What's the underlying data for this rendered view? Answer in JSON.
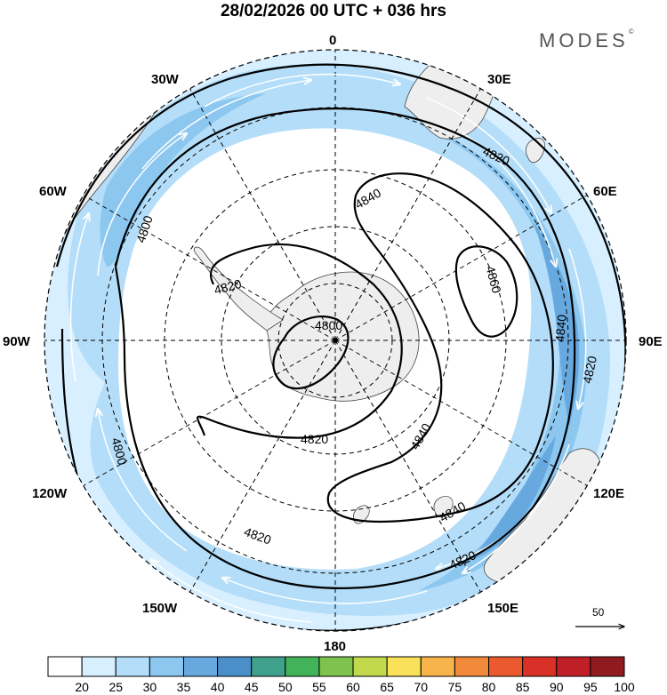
{
  "title": "28/02/2026  00 UTC  + 036 hrs",
  "brand": "MODES",
  "brand_mark": "©",
  "longitude_labels": {
    "lon_0": "0",
    "lon_30e": "30E",
    "lon_60e": "60E",
    "lon_90e": "90E",
    "lon_120e": "120E",
    "lon_150e": "150E",
    "lon_180": "180",
    "lon_150w": "150W",
    "lon_120w": "120W",
    "lon_90w": "90W",
    "lon_60w": "60W",
    "lon_30w": "30W"
  },
  "contours": {
    "c4800_center": "4800",
    "c4800_west": "4800",
    "c4800_sw": "4800",
    "c4820_pen": "4820",
    "c4820_ne": "4820",
    "c4820_east": "4820",
    "c4820_inner": "4820",
    "c4820_pac": "4820",
    "c4820_se": "4820",
    "c4840_north": "4840",
    "c4840_east": "4840",
    "c4840_inner": "4840",
    "c4840_se": "4840",
    "c4860": "4860"
  },
  "vector_reference": "50",
  "colorbar": {
    "ticks": [
      "20",
      "25",
      "30",
      "35",
      "40",
      "45",
      "50",
      "55",
      "60",
      "65",
      "70",
      "75",
      "80",
      "85",
      "90",
      "95",
      "100"
    ],
    "colors": [
      "#ffffff",
      "#d7efff",
      "#b3ddf8",
      "#8cc7f0",
      "#67a9df",
      "#4a8fca",
      "#3fa08c",
      "#43b35a",
      "#7ec34d",
      "#c2d94e",
      "#f9e15a",
      "#f7b44a",
      "#f28a3c",
      "#eb5a2e",
      "#d93027",
      "#bf1f26",
      "#8f1b1f"
    ]
  },
  "map_colors": {
    "wind_25": "#d7efff",
    "wind_30": "#b3ddf8",
    "wind_35": "#8cc7f0",
    "wind_40": "#67a9df",
    "land": "#eeeeee"
  }
}
